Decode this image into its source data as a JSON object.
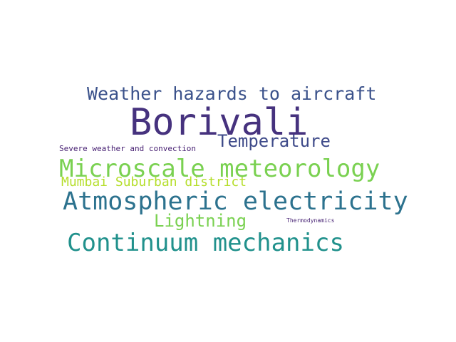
{
  "wordcloud": {
    "words": [
      {
        "text": "Borivali",
        "color": "#46327e"
      },
      {
        "text": "Weather hazards to aircraft",
        "color": "#3b528b"
      },
      {
        "text": "Temperature",
        "color": "#3e4a89"
      },
      {
        "text": "Severe weather and convection",
        "color": "#482173"
      },
      {
        "text": "Microscale meteorology",
        "color": "#7ad151"
      },
      {
        "text": "Mumbai Suburban district",
        "color": "#b5de2b"
      },
      {
        "text": "Atmospheric electricity",
        "color": "#2c728e"
      },
      {
        "text": "Lightning",
        "color": "#7ad151"
      },
      {
        "text": "Thermodynamics",
        "color": "#482475"
      },
      {
        "text": "Continuum mechanics",
        "color": "#21918c"
      }
    ]
  }
}
